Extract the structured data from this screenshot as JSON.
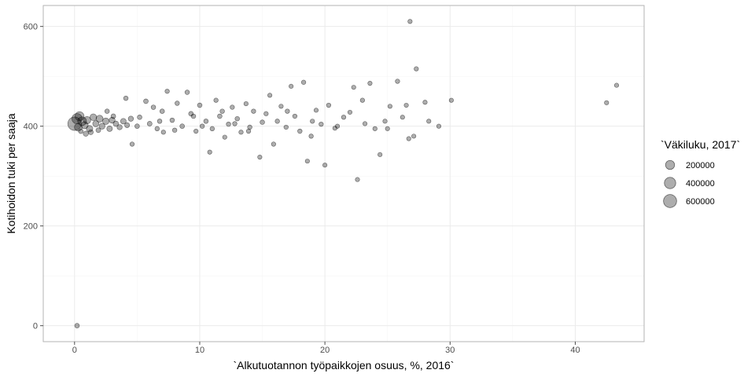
{
  "chart_data": {
    "type": "scatter",
    "xlabel": "`Alkutuotannon työpaikkojen osuus, %, 2016`",
    "ylabel": "Kotihoidon tuki per saaja",
    "xlim": [
      -2.5,
      45.5
    ],
    "ylim": [
      -32,
      642
    ],
    "x_ticks": [
      0,
      10,
      20,
      30,
      40
    ],
    "x_tick_labels": [
      "0",
      "10",
      "20",
      "30",
      "40"
    ],
    "y_ticks": [
      0,
      200,
      400,
      600
    ],
    "y_tick_labels": [
      "0",
      "200",
      "400",
      "600"
    ],
    "grid": true,
    "size_legend": {
      "title": "`Väkiluku, 2017`",
      "position": "right",
      "entries": [
        {
          "label": "200000",
          "value": 200000
        },
        {
          "label": "400000",
          "value": 400000
        },
        {
          "label": "600000",
          "value": 600000
        }
      ]
    },
    "colors": {
      "point_fill": "#000000",
      "point_alpha": 0.32,
      "grid": "#ebebeb",
      "border": "#b3b3b3"
    },
    "points": [
      [
        0.0,
        405,
        650000
      ],
      [
        0.2,
        415,
        300000
      ],
      [
        0.4,
        420,
        200000
      ],
      [
        0.3,
        398,
        120000
      ],
      [
        0.6,
        410,
        180000
      ],
      [
        0.8,
        402,
        90000
      ],
      [
        1.0,
        412,
        100000
      ],
      [
        1.2,
        395,
        60000
      ],
      [
        1.5,
        418,
        70000
      ],
      [
        1.7,
        405,
        50000
      ],
      [
        2.0,
        415,
        80000
      ],
      [
        2.2,
        400,
        40000
      ],
      [
        2.5,
        410,
        60000
      ],
      [
        2.8,
        395,
        30000
      ],
      [
        3.0,
        412,
        40000
      ],
      [
        3.3,
        405,
        25000
      ],
      [
        3.6,
        398,
        20000
      ],
      [
        3.9,
        410,
        30000
      ],
      [
        4.2,
        402,
        15000
      ],
      [
        4.5,
        415,
        20000
      ],
      [
        0.9,
        385,
        20000
      ],
      [
        1.3,
        388,
        15000
      ],
      [
        1.9,
        392,
        12000
      ],
      [
        0.5,
        390,
        10000
      ],
      [
        4.1,
        456,
        8000
      ],
      [
        4.6,
        364,
        6000
      ],
      [
        5.2,
        418,
        9000
      ],
      [
        5.7,
        450,
        10000
      ],
      [
        6.0,
        405,
        12000
      ],
      [
        6.3,
        438,
        8000
      ],
      [
        6.6,
        395,
        7000
      ],
      [
        7.0,
        430,
        9000
      ],
      [
        7.4,
        470,
        6000
      ],
      [
        7.8,
        412,
        8000
      ],
      [
        8.2,
        446,
        7000
      ],
      [
        8.6,
        400,
        9000
      ],
      [
        9.0,
        468,
        8000
      ],
      [
        9.3,
        425,
        10000
      ],
      [
        9.7,
        390,
        6000
      ],
      [
        10.0,
        442,
        9000
      ],
      [
        10.5,
        410,
        8000
      ],
      [
        10.8,
        348,
        5000
      ],
      [
        11.0,
        395,
        7000
      ],
      [
        11.3,
        452,
        6000
      ],
      [
        11.6,
        420,
        9000
      ],
      [
        12.0,
        378,
        5000
      ],
      [
        12.3,
        404,
        7000
      ],
      [
        12.6,
        438,
        6000
      ],
      [
        13.0,
        415,
        8000
      ],
      [
        13.3,
        388,
        6000
      ],
      [
        13.7,
        445,
        5000
      ],
      [
        14.0,
        398,
        7000
      ],
      [
        14.3,
        430,
        6000
      ],
      [
        14.8,
        338,
        5000
      ],
      [
        15.0,
        408,
        8000
      ],
      [
        15.3,
        425,
        6000
      ],
      [
        15.6,
        462,
        5000
      ],
      [
        15.9,
        364,
        6000
      ],
      [
        16.2,
        410,
        7000
      ],
      [
        16.5,
        440,
        5000
      ],
      [
        16.9,
        398,
        6000
      ],
      [
        17.3,
        480,
        5000
      ],
      [
        17.6,
        420,
        6000
      ],
      [
        18.0,
        390,
        7000
      ],
      [
        18.3,
        488,
        6000
      ],
      [
        18.6,
        330,
        5000
      ],
      [
        19.0,
        410,
        6000
      ],
      [
        19.3,
        432,
        5000
      ],
      [
        19.7,
        404,
        6000
      ],
      [
        20.0,
        322,
        5000
      ],
      [
        20.3,
        442,
        6000
      ],
      [
        20.8,
        396,
        5000
      ],
      [
        21.5,
        418,
        6000
      ],
      [
        22.0,
        428,
        5000
      ],
      [
        22.3,
        478,
        5000
      ],
      [
        22.6,
        293,
        5000
      ],
      [
        23.0,
        452,
        6000
      ],
      [
        23.2,
        405,
        5000
      ],
      [
        23.6,
        486,
        5000
      ],
      [
        24.0,
        395,
        6000
      ],
      [
        24.4,
        343,
        5000
      ],
      [
        24.8,
        410,
        5000
      ],
      [
        25.2,
        440,
        5000
      ],
      [
        25.8,
        490,
        6000
      ],
      [
        26.2,
        418,
        5000
      ],
      [
        26.7,
        375,
        5000
      ],
      [
        26.8,
        610,
        5000
      ],
      [
        27.1,
        380,
        5000
      ],
      [
        27.3,
        515,
        6000
      ],
      [
        28.0,
        448,
        5000
      ],
      [
        28.3,
        410,
        5000
      ],
      [
        29.1,
        400,
        5000
      ],
      [
        30.1,
        452,
        5000
      ],
      [
        42.5,
        447,
        5000
      ],
      [
        43.3,
        482,
        5000
      ],
      [
        0.2,
        0,
        10000
      ],
      [
        2.6,
        430,
        8000
      ],
      [
        3.1,
        420,
        10000
      ],
      [
        5.0,
        400,
        9000
      ],
      [
        6.8,
        410,
        8000
      ],
      [
        8.0,
        392,
        7000
      ],
      [
        9.5,
        420,
        8000
      ],
      [
        10.2,
        400,
        7000
      ],
      [
        12.8,
        405,
        6000
      ],
      [
        13.9,
        390,
        6000
      ],
      [
        17.0,
        430,
        6000
      ],
      [
        18.9,
        380,
        6000
      ],
      [
        21.0,
        400,
        5000
      ],
      [
        25.0,
        395,
        5000
      ],
      [
        26.5,
        442,
        5000
      ],
      [
        7.1,
        388,
        6000
      ],
      [
        11.8,
        430,
        7000
      ]
    ]
  }
}
